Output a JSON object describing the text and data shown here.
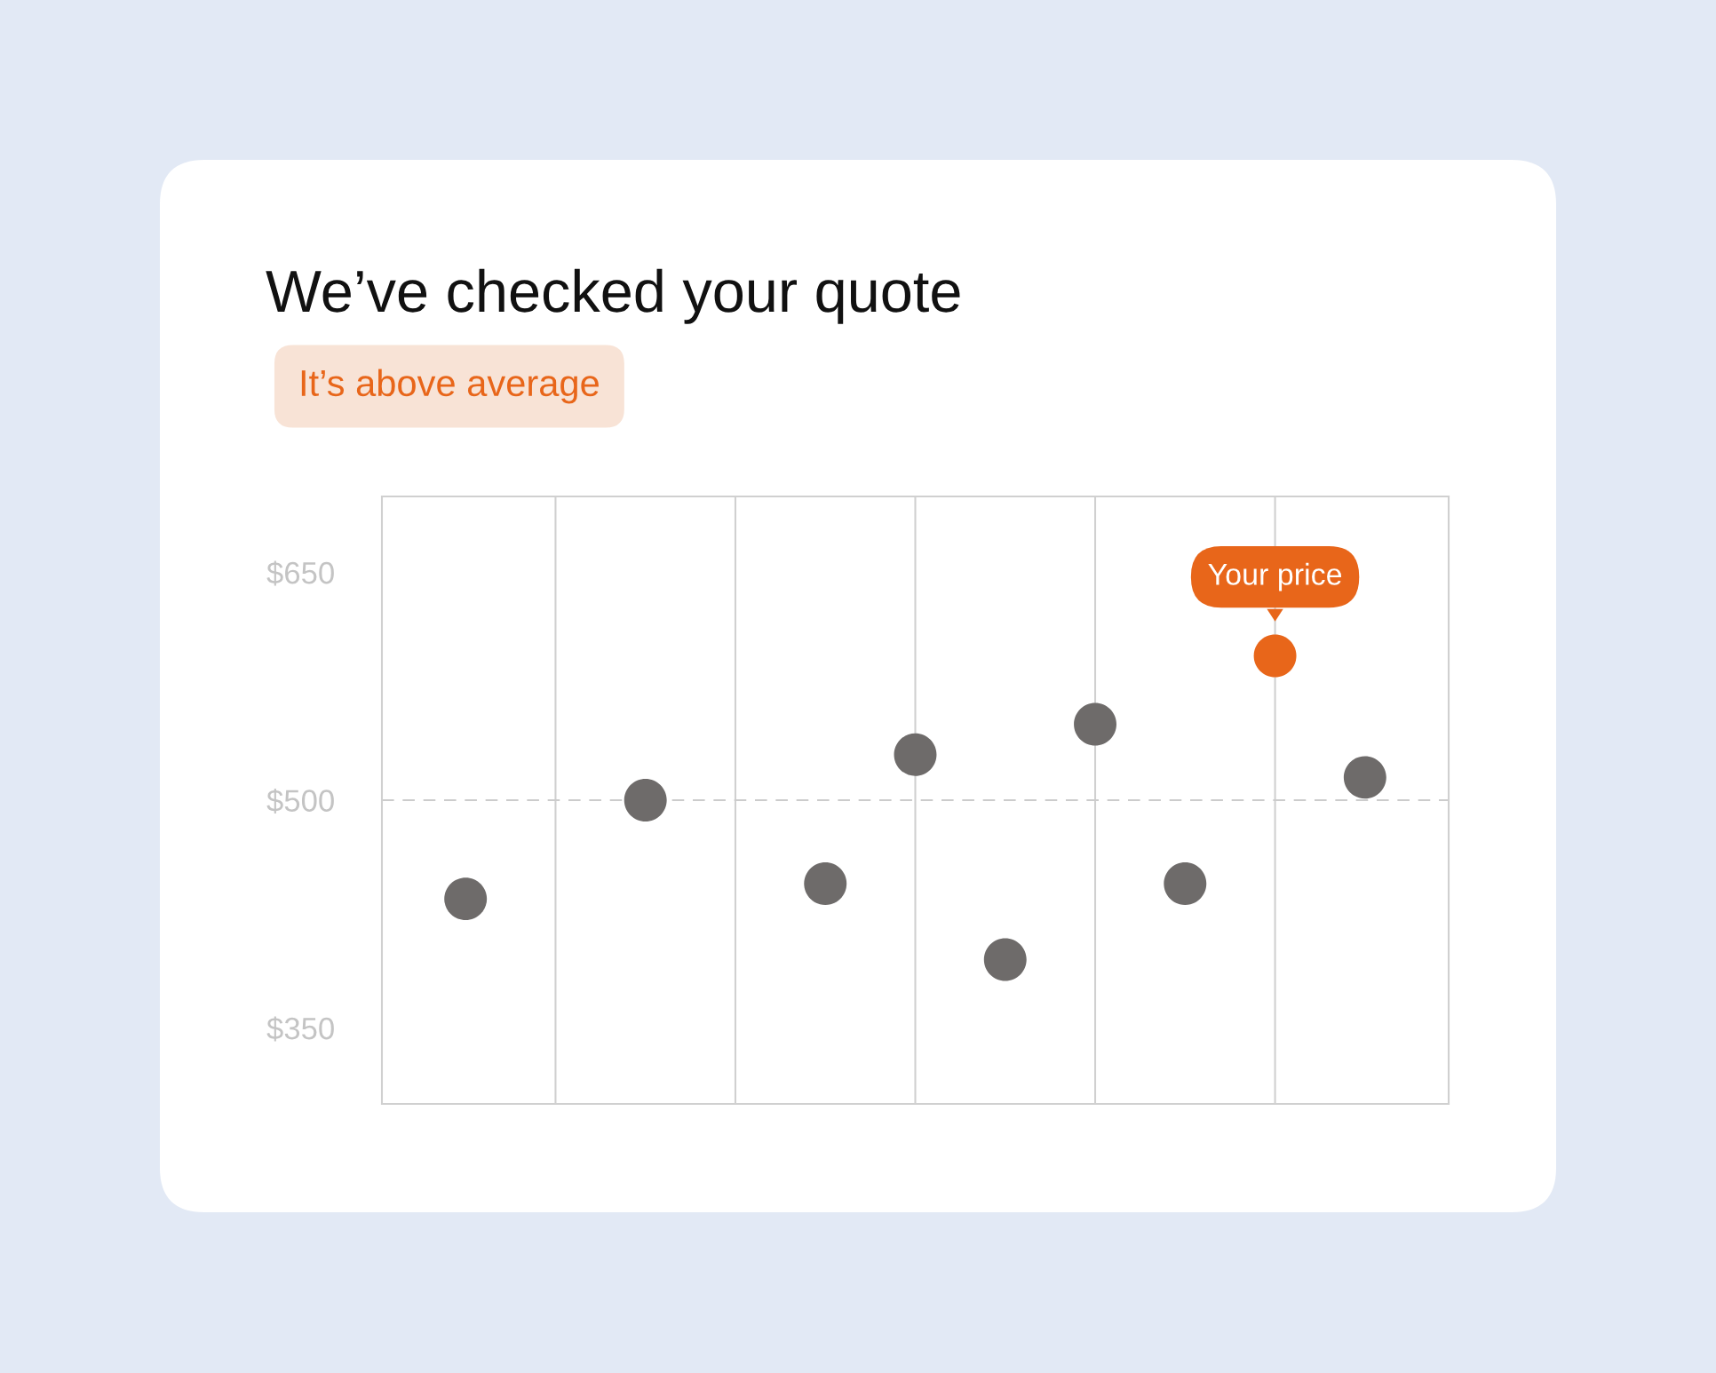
{
  "chart_data": {
    "type": "scatter",
    "title": "We’ve checked your quote",
    "subtitle": "It’s above average",
    "categories": [
      null,
      null,
      null,
      null,
      null,
      null,
      null,
      null,
      null,
      null,
      null
    ],
    "values": [
      435,
      null,
      500,
      null,
      445,
      530,
      395,
      550,
      445,
      595,
      515
    ],
    "colors": [
      "#6e6b6a",
      null,
      "#6e6b6a",
      null,
      "#6e6b6a",
      "#6e6b6a",
      "#6e6b6a",
      "#6e6b6a",
      "#6e6b6a",
      "#e8661a",
      "#6e6b6a"
    ],
    "marker": "circle",
    "ylim": [
      300,
      700
    ],
    "yticks": [
      {
        "value": 350,
        "label": "$350"
      },
      {
        "value": 500,
        "label": "$500"
      },
      {
        "value": 650,
        "label": "$650"
      }
    ],
    "tick_labels": "y",
    "grid": "x",
    "ref_lines": [
      {
        "axis": "y",
        "value": 500,
        "color": "#cccccc",
        "line_style": "dashed"
      }
    ],
    "annotations": [
      {
        "text": "Your price",
        "y": 595
      }
    ]
  }
}
